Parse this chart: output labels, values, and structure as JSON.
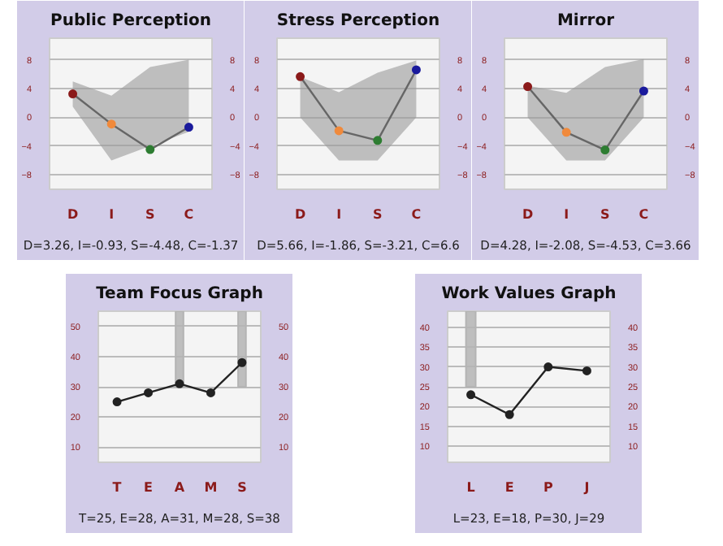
{
  "chart_data": [
    {
      "type": "line",
      "title": "Public Perception",
      "categories": [
        "D",
        "I",
        "S",
        "C"
      ],
      "ylim": [
        -10,
        11
      ],
      "yticks": [
        -8,
        -4,
        0,
        4,
        8
      ],
      "y2lim": [
        -10,
        11
      ],
      "y2ticks": [
        -8,
        -4,
        0,
        4,
        8
      ],
      "grid": "y",
      "marker": "circle",
      "series": [
        {
          "color": "#666666",
          "colors": [
            "#8b1a1a",
            "#f08a3c",
            "#2e7d32",
            "#1a1a9c"
          ],
          "values": [
            3.26,
            -0.93,
            -4.48,
            -1.37
          ],
          "lower": [
            1.5,
            -6,
            -4,
            -2
          ],
          "upper": [
            5,
            3,
            7,
            8
          ]
        }
      ],
      "annotations": [
        "D=3.26, I=-0.93, S=-4.48, C=-1.37"
      ]
    },
    {
      "type": "line",
      "title": "Stress Perception",
      "categories": [
        "D",
        "I",
        "S",
        "C"
      ],
      "ylim": [
        -10,
        11
      ],
      "yticks": [
        -8,
        -4,
        0,
        4,
        8
      ],
      "y2lim": [
        -10,
        11
      ],
      "y2ticks": [
        -8,
        -4,
        0,
        4,
        8
      ],
      "grid": "y",
      "marker": "circle",
      "series": [
        {
          "color": "#666666",
          "colors": [
            "#8b1a1a",
            "#f08a3c",
            "#2e7d32",
            "#1a1a9c"
          ],
          "values": [
            5.66,
            -1.86,
            -3.21,
            6.6
          ],
          "lower": [
            0,
            -6,
            -6,
            0
          ],
          "upper": [
            5.6,
            3.5,
            6.2,
            7.9
          ]
        }
      ],
      "annotations": [
        "D=5.66, I=-1.86, S=-3.21, C=6.6"
      ]
    },
    {
      "type": "line",
      "title": "Mirror",
      "categories": [
        "D",
        "I",
        "S",
        "C"
      ],
      "ylim": [
        -10,
        11
      ],
      "yticks": [
        -8,
        -4,
        0,
        4,
        8
      ],
      "y2lim": [
        -10,
        11
      ],
      "y2ticks": [
        -8,
        -4,
        0,
        4,
        8
      ],
      "grid": "y",
      "marker": "circle",
      "series": [
        {
          "color": "#666666",
          "colors": [
            "#8b1a1a",
            "#f08a3c",
            "#2e7d32",
            "#1a1a9c"
          ],
          "values": [
            4.28,
            -2.08,
            -4.53,
            3.66
          ],
          "lower": [
            0,
            -6,
            -6,
            0
          ],
          "upper": [
            4.4,
            3.4,
            7,
            8.1
          ]
        }
      ],
      "annotations": [
        "D=4.28, I=-2.08, S=-4.53, C=3.66"
      ]
    },
    {
      "type": "line",
      "title": "Team Focus Graph",
      "categories": [
        "T",
        "E",
        "A",
        "M",
        "S"
      ],
      "ylim": [
        5,
        55
      ],
      "yticks": [
        10,
        20,
        30,
        40,
        50
      ],
      "y2lim": [
        5,
        55
      ],
      "y2ticks": [
        10,
        20,
        30,
        40,
        50
      ],
      "grid": "y",
      "marker": "circle",
      "series": [
        {
          "type": "bar",
          "color": "#b4b4b4",
          "base": [
            null,
            null,
            30,
            null,
            30
          ],
          "values": [
            null,
            null,
            25,
            null,
            25
          ]
        },
        {
          "color": "#222222",
          "values": [
            25,
            28,
            31,
            28,
            38
          ]
        }
      ],
      "annotations": [
        "T=25, E=28, A=31, M=28, S=38"
      ]
    },
    {
      "type": "line",
      "title": "Work Values Graph",
      "categories": [
        "L",
        "E",
        "P",
        "J"
      ],
      "ylim": [
        6,
        44
      ],
      "yticks": [
        10,
        15,
        20,
        25,
        30,
        35,
        40
      ],
      "y2lim": [
        6,
        44
      ],
      "y2ticks": [
        10,
        15,
        20,
        25,
        30,
        35,
        40
      ],
      "grid": "y",
      "marker": "circle",
      "series": [
        {
          "type": "bar",
          "color": "#b4b4b4",
          "base": [
            25,
            null,
            null,
            null
          ],
          "values": [
            19,
            null,
            null,
            null
          ]
        },
        {
          "color": "#222222",
          "values": [
            23,
            18,
            30,
            29
          ]
        }
      ],
      "annotations": [
        "L=23, E=18, P=30, J=29"
      ]
    }
  ]
}
